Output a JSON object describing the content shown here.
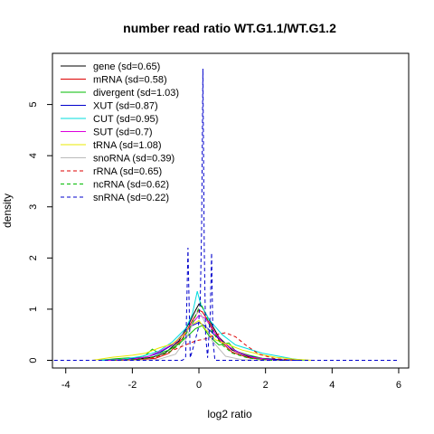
{
  "chart_data": {
    "type": "line",
    "title": "number read ratio WT.G1.1/WT.G1.2",
    "xlabel": "log2 ratio",
    "ylabel": "density",
    "xlim": [
      -4.4,
      6.3
    ],
    "ylim": [
      -0.15,
      6.0
    ],
    "xticks": [
      -4,
      -2,
      0,
      2,
      4,
      6
    ],
    "yticks": [
      0,
      1,
      2,
      3,
      4,
      5
    ],
    "grid": false,
    "legend_position": "top-left",
    "series": [
      {
        "name": "gene (sd=0.65)",
        "color": "#000000",
        "dash": "solid",
        "points": [
          [
            -2.8,
            0
          ],
          [
            -2.0,
            0.01
          ],
          [
            -1.4,
            0.06
          ],
          [
            -1.0,
            0.15
          ],
          [
            -0.6,
            0.38
          ],
          [
            -0.3,
            0.72
          ],
          [
            -0.1,
            0.98
          ],
          [
            0.0,
            1.1
          ],
          [
            0.1,
            1.04
          ],
          [
            0.3,
            0.8
          ],
          [
            0.6,
            0.45
          ],
          [
            1.0,
            0.2
          ],
          [
            1.5,
            0.07
          ],
          [
            2.0,
            0.02
          ],
          [
            2.6,
            0
          ]
        ]
      },
      {
        "name": "mRNA (sd=0.58)",
        "color": "#dd0000",
        "dash": "solid",
        "points": [
          [
            -2.6,
            0
          ],
          [
            -1.8,
            0.01
          ],
          [
            -1.3,
            0.04
          ],
          [
            -0.9,
            0.14
          ],
          [
            -0.5,
            0.42
          ],
          [
            -0.2,
            0.78
          ],
          [
            0.0,
            0.98
          ],
          [
            0.1,
            0.95
          ],
          [
            0.3,
            0.75
          ],
          [
            0.6,
            0.4
          ],
          [
            1.0,
            0.16
          ],
          [
            1.5,
            0.05
          ],
          [
            2.2,
            0
          ]
        ]
      },
      {
        "name": "divergent (sd=1.03)",
        "color": "#00bb00",
        "dash": "solid",
        "points": [
          [
            -3.0,
            0
          ],
          [
            -2.5,
            0.03
          ],
          [
            -2.1,
            0.05
          ],
          [
            -1.9,
            0.04
          ],
          [
            -1.6,
            0.1
          ],
          [
            -1.4,
            0.22
          ],
          [
            -1.2,
            0.14
          ],
          [
            -0.9,
            0.2
          ],
          [
            -0.6,
            0.32
          ],
          [
            -0.3,
            0.5
          ],
          [
            -0.1,
            0.62
          ],
          [
            0.1,
            0.68
          ],
          [
            0.3,
            0.48
          ],
          [
            0.6,
            0.3
          ],
          [
            0.9,
            0.34
          ],
          [
            1.1,
            0.18
          ],
          [
            1.5,
            0.1
          ],
          [
            1.9,
            0.04
          ],
          [
            2.5,
            0.01
          ],
          [
            3.2,
            0
          ]
        ]
      },
      {
        "name": "XUT (sd=0.87)",
        "color": "#0000cc",
        "dash": "solid",
        "points": [
          [
            -2.9,
            0
          ],
          [
            -2.2,
            0.02
          ],
          [
            -1.6,
            0.06
          ],
          [
            -1.2,
            0.14
          ],
          [
            -0.8,
            0.3
          ],
          [
            -0.5,
            0.5
          ],
          [
            -0.2,
            0.68
          ],
          [
            0.0,
            0.74
          ],
          [
            0.2,
            0.66
          ],
          [
            0.5,
            0.48
          ],
          [
            0.9,
            0.26
          ],
          [
            1.3,
            0.12
          ],
          [
            1.8,
            0.04
          ],
          [
            2.5,
            0.01
          ],
          [
            3.0,
            0
          ]
        ]
      },
      {
        "name": "CUT (sd=0.95)",
        "color": "#00dddd",
        "dash": "solid",
        "points": [
          [
            -3.0,
            0
          ],
          [
            -2.3,
            0.02
          ],
          [
            -1.7,
            0.08
          ],
          [
            -1.2,
            0.18
          ],
          [
            -0.8,
            0.36
          ],
          [
            -0.4,
            0.62
          ],
          [
            -0.2,
            0.9
          ],
          [
            -0.05,
            1.35
          ],
          [
            0.05,
            1.1
          ],
          [
            0.3,
            0.8
          ],
          [
            0.7,
            0.5
          ],
          [
            1.1,
            0.3
          ],
          [
            1.5,
            0.22
          ],
          [
            1.9,
            0.14
          ],
          [
            2.4,
            0.08
          ],
          [
            2.8,
            0.03
          ],
          [
            3.2,
            0
          ]
        ]
      },
      {
        "name": "SUT (sd=0.7)",
        "color": "#dd00dd",
        "dash": "solid",
        "points": [
          [
            -2.8,
            0
          ],
          [
            -2.0,
            0.02
          ],
          [
            -1.5,
            0.08
          ],
          [
            -1.1,
            0.2
          ],
          [
            -0.7,
            0.35
          ],
          [
            -0.4,
            0.55
          ],
          [
            -0.2,
            0.72
          ],
          [
            0.0,
            0.88
          ],
          [
            0.2,
            0.82
          ],
          [
            0.4,
            0.6
          ],
          [
            0.7,
            0.36
          ],
          [
            1.1,
            0.18
          ],
          [
            1.6,
            0.06
          ],
          [
            2.3,
            0
          ]
        ]
      },
      {
        "name": "tRNA (sd=1.08)",
        "color": "#e8e800",
        "dash": "solid",
        "points": [
          [
            -3.2,
            0
          ],
          [
            -2.6,
            0.06
          ],
          [
            -2.0,
            0.1
          ],
          [
            -1.6,
            0.14
          ],
          [
            -1.2,
            0.24
          ],
          [
            -0.8,
            0.32
          ],
          [
            -0.5,
            0.48
          ],
          [
            -0.2,
            0.7
          ],
          [
            0.0,
            0.78
          ],
          [
            0.2,
            0.6
          ],
          [
            0.5,
            0.4
          ],
          [
            0.9,
            0.3
          ],
          [
            1.3,
            0.2
          ],
          [
            1.8,
            0.12
          ],
          [
            2.3,
            0.06
          ],
          [
            2.9,
            0.02
          ],
          [
            3.4,
            0
          ]
        ]
      },
      {
        "name": "snoRNA (sd=0.39)",
        "color": "#bbbbbb",
        "dash": "solid",
        "points": [
          [
            -2.0,
            0
          ],
          [
            -1.2,
            0.02
          ],
          [
            -0.7,
            0.12
          ],
          [
            -0.4,
            0.4
          ],
          [
            -0.2,
            0.7
          ],
          [
            -0.05,
            0.95
          ],
          [
            0.05,
            0.92
          ],
          [
            0.2,
            0.7
          ],
          [
            0.4,
            0.38
          ],
          [
            0.8,
            0.08
          ],
          [
            1.3,
            0.01
          ],
          [
            2.0,
            0
          ]
        ]
      },
      {
        "name": "rRNA (sd=0.65)",
        "color": "#dd0000",
        "dash": "dashed",
        "points": [
          [
            -2.6,
            0
          ],
          [
            -1.8,
            0.02
          ],
          [
            -1.3,
            0.06
          ],
          [
            -1.0,
            0.14
          ],
          [
            -0.7,
            0.22
          ],
          [
            -0.4,
            0.3
          ],
          [
            -0.1,
            0.38
          ],
          [
            0.2,
            0.42
          ],
          [
            0.5,
            0.5
          ],
          [
            0.8,
            0.54
          ],
          [
            1.1,
            0.46
          ],
          [
            1.4,
            0.3
          ],
          [
            1.8,
            0.12
          ],
          [
            2.3,
            0.03
          ],
          [
            2.9,
            0
          ]
        ]
      },
      {
        "name": "ncRNA (sd=0.62)",
        "color": "#00bb00",
        "dash": "dashed",
        "points": [
          [
            -2.6,
            0
          ],
          [
            -1.8,
            0.02
          ],
          [
            -1.3,
            0.08
          ],
          [
            -0.9,
            0.16
          ],
          [
            -0.6,
            0.3
          ],
          [
            -0.4,
            0.5
          ],
          [
            -0.2,
            0.72
          ],
          [
            -0.05,
            0.95
          ],
          [
            0.05,
            1.12
          ],
          [
            0.2,
            0.9
          ],
          [
            0.4,
            0.55
          ],
          [
            0.7,
            0.3
          ],
          [
            1.0,
            0.14
          ],
          [
            1.5,
            0.04
          ],
          [
            2.2,
            0
          ]
        ]
      },
      {
        "name": "snRNA (sd=0.22)",
        "color": "#0000cc",
        "dash": "dashed",
        "points": [
          [
            -4.35,
            0
          ],
          [
            -0.5,
            0
          ],
          [
            -0.4,
            0.05
          ],
          [
            -0.33,
            2.2
          ],
          [
            -0.26,
            0.05
          ],
          [
            -0.15,
            0.3
          ],
          [
            -0.02,
            0.62
          ],
          [
            0.04,
            1.2
          ],
          [
            0.08,
            2.6
          ],
          [
            0.12,
            5.7
          ],
          [
            0.16,
            2.2
          ],
          [
            0.2,
            0.5
          ],
          [
            0.26,
            0.05
          ],
          [
            0.34,
            0.9
          ],
          [
            0.38,
            2.1
          ],
          [
            0.42,
            0.4
          ],
          [
            0.48,
            0
          ],
          [
            6.0,
            0
          ]
        ]
      }
    ]
  }
}
